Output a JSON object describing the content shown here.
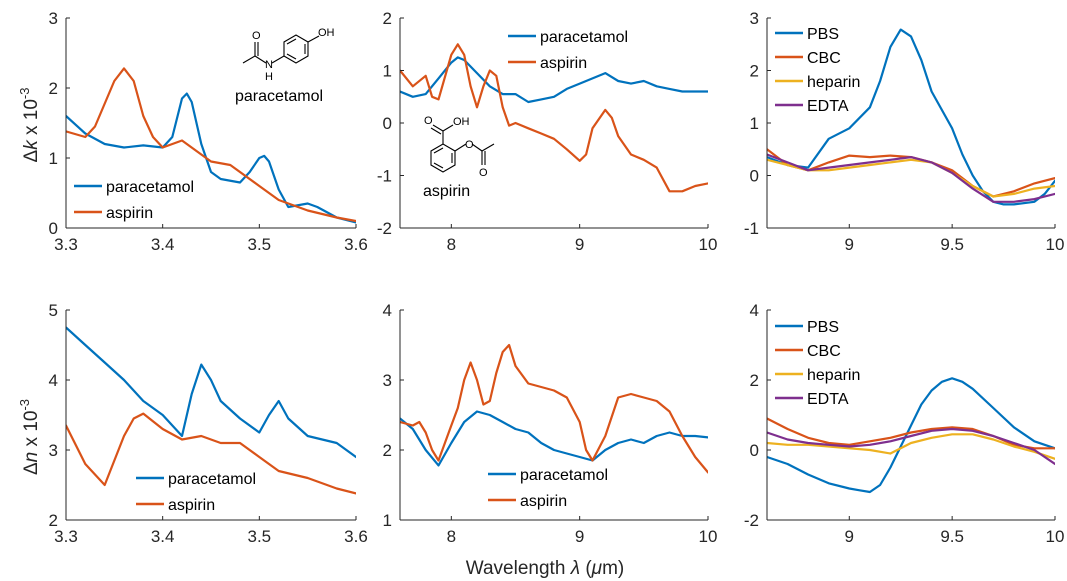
{
  "figure": {
    "y_label_top": "Δk x 10⁻³",
    "y_label_top_parts": {
      "delta": "Δ",
      "symbol": "k",
      "rest": " x 10",
      "exp": "-3"
    },
    "y_label_bottom_parts": {
      "delta": "Δ",
      "symbol": "n",
      "rest": " x 10",
      "exp": "-3"
    },
    "x_label_parts": {
      "text": "Wavelength ",
      "lambda": "λ",
      "unit_open": " (",
      "mu": "μ",
      "unit_close": "m)"
    },
    "molecules": {
      "paracetamol": "paracetamol",
      "aspirin": "aspirin",
      "oh": "OH",
      "o": "O",
      "n": "N",
      "h": "H"
    },
    "colors": {
      "blue": "#0072BD",
      "orange": "#D95319",
      "yellow": "#EDB120",
      "purple": "#7E2F8E"
    }
  },
  "chart_data": [
    {
      "id": "p1",
      "type": "line",
      "xlim": [
        3.3,
        3.6
      ],
      "ylim": [
        0,
        3
      ],
      "xticks": [
        "3.3",
        "3.4",
        "3.5",
        "3.6"
      ],
      "yticks": [
        "0",
        "1",
        "2",
        "3"
      ],
      "legend": "bottom-left",
      "series": [
        {
          "name": "paracetamol",
          "color": "#0072BD",
          "x": [
            3.3,
            3.32,
            3.34,
            3.36,
            3.38,
            3.4,
            3.41,
            3.42,
            3.425,
            3.43,
            3.44,
            3.45,
            3.46,
            3.48,
            3.49,
            3.5,
            3.505,
            3.51,
            3.52,
            3.53,
            3.55,
            3.56,
            3.58,
            3.6
          ],
          "y": [
            1.6,
            1.35,
            1.2,
            1.15,
            1.18,
            1.15,
            1.3,
            1.85,
            1.92,
            1.8,
            1.2,
            0.8,
            0.7,
            0.65,
            0.8,
            1.0,
            1.03,
            0.95,
            0.55,
            0.3,
            0.35,
            0.3,
            0.15,
            0.08
          ]
        },
        {
          "name": "aspirin",
          "color": "#D95319",
          "x": [
            3.3,
            3.32,
            3.33,
            3.35,
            3.36,
            3.37,
            3.38,
            3.39,
            3.4,
            3.42,
            3.44,
            3.45,
            3.47,
            3.5,
            3.52,
            3.55,
            3.58,
            3.6
          ],
          "y": [
            1.38,
            1.3,
            1.45,
            2.1,
            2.28,
            2.1,
            1.6,
            1.3,
            1.15,
            1.25,
            1.05,
            0.95,
            0.9,
            0.6,
            0.4,
            0.25,
            0.15,
            0.1
          ]
        }
      ]
    },
    {
      "id": "p2",
      "type": "line",
      "xlim": [
        7.6,
        10
      ],
      "ylim": [
        -2,
        2
      ],
      "xticks": [
        "8",
        "9",
        "10"
      ],
      "yticks": [
        "-2",
        "-1",
        "0",
        "1",
        "2"
      ],
      "legend": "top-right",
      "series": [
        {
          "name": "paracetamol",
          "color": "#0072BD",
          "x": [
            7.6,
            7.7,
            7.8,
            7.9,
            8.0,
            8.05,
            8.1,
            8.2,
            8.3,
            8.4,
            8.5,
            8.6,
            8.7,
            8.8,
            8.9,
            9.0,
            9.1,
            9.2,
            9.3,
            9.4,
            9.5,
            9.6,
            9.7,
            9.8,
            9.9,
            10.0
          ],
          "y": [
            0.6,
            0.5,
            0.55,
            0.85,
            1.15,
            1.25,
            1.2,
            0.95,
            0.7,
            0.55,
            0.55,
            0.4,
            0.45,
            0.5,
            0.65,
            0.75,
            0.85,
            0.95,
            0.8,
            0.75,
            0.8,
            0.7,
            0.65,
            0.6,
            0.6,
            0.6
          ]
        },
        {
          "name": "aspirin",
          "color": "#D95319",
          "x": [
            7.6,
            7.7,
            7.8,
            7.85,
            7.9,
            8.0,
            8.05,
            8.1,
            8.15,
            8.2,
            8.25,
            8.3,
            8.35,
            8.4,
            8.45,
            8.5,
            8.6,
            8.7,
            8.8,
            8.9,
            9.0,
            9.05,
            9.1,
            9.2,
            9.25,
            9.3,
            9.4,
            9.5,
            9.6,
            9.7,
            9.8,
            9.9,
            10.0
          ],
          "y": [
            1.0,
            0.7,
            0.9,
            0.5,
            0.45,
            1.3,
            1.5,
            1.3,
            0.7,
            0.3,
            0.7,
            1.0,
            0.9,
            0.3,
            -0.05,
            0.0,
            -0.1,
            -0.2,
            -0.3,
            -0.5,
            -0.72,
            -0.6,
            -0.1,
            0.25,
            0.1,
            -0.25,
            -0.6,
            -0.7,
            -0.85,
            -1.3,
            -1.3,
            -1.2,
            -1.15
          ]
        }
      ]
    },
    {
      "id": "p3",
      "type": "line",
      "xlim": [
        8.6,
        10
      ],
      "ylim": [
        -1,
        3
      ],
      "xticks": [
        "9",
        "9.5",
        "10"
      ],
      "yticks": [
        "-1",
        "0",
        "1",
        "2",
        "3"
      ],
      "legend": "top-left",
      "series": [
        {
          "name": "PBS",
          "color": "#0072BD",
          "x": [
            8.6,
            8.7,
            8.8,
            8.9,
            9.0,
            9.1,
            9.15,
            9.2,
            9.25,
            9.3,
            9.35,
            9.4,
            9.5,
            9.55,
            9.6,
            9.65,
            9.7,
            9.75,
            9.8,
            9.9,
            9.95,
            10.0
          ],
          "y": [
            0.35,
            0.2,
            0.15,
            0.7,
            0.9,
            1.3,
            1.8,
            2.45,
            2.78,
            2.65,
            2.2,
            1.6,
            0.9,
            0.4,
            0.0,
            -0.3,
            -0.5,
            -0.55,
            -0.55,
            -0.5,
            -0.35,
            -0.1
          ]
        },
        {
          "name": "CBC",
          "color": "#D95319",
          "x": [
            8.6,
            8.7,
            8.8,
            8.9,
            9.0,
            9.1,
            9.2,
            9.3,
            9.4,
            9.5,
            9.6,
            9.7,
            9.8,
            9.9,
            10.0
          ],
          "y": [
            0.5,
            0.2,
            0.1,
            0.25,
            0.38,
            0.35,
            0.38,
            0.35,
            0.25,
            0.1,
            -0.2,
            -0.4,
            -0.3,
            -0.15,
            -0.05
          ]
        },
        {
          "name": "heparin",
          "color": "#EDB120",
          "x": [
            8.6,
            8.7,
            8.8,
            8.9,
            9.0,
            9.1,
            9.2,
            9.3,
            9.4,
            9.5,
            9.6,
            9.7,
            9.8,
            9.9,
            10.0
          ],
          "y": [
            0.3,
            0.2,
            0.1,
            0.1,
            0.15,
            0.2,
            0.25,
            0.3,
            0.25,
            0.05,
            -0.2,
            -0.4,
            -0.35,
            -0.25,
            -0.2
          ]
        },
        {
          "name": "EDTA",
          "color": "#7E2F8E",
          "x": [
            8.6,
            8.7,
            8.8,
            8.9,
            9.0,
            9.1,
            9.2,
            9.3,
            9.4,
            9.5,
            9.6,
            9.7,
            9.8,
            9.9,
            10.0
          ],
          "y": [
            0.4,
            0.25,
            0.1,
            0.15,
            0.2,
            0.25,
            0.3,
            0.35,
            0.25,
            0.05,
            -0.25,
            -0.5,
            -0.5,
            -0.45,
            -0.35
          ]
        }
      ]
    },
    {
      "id": "p4",
      "type": "line",
      "xlim": [
        3.3,
        3.6
      ],
      "ylim": [
        2,
        5
      ],
      "xticks": [
        "3.3",
        "3.4",
        "3.5",
        "3.6"
      ],
      "yticks": [
        "2",
        "3",
        "4",
        "5"
      ],
      "legend": "bottom-center",
      "series": [
        {
          "name": "paracetamol",
          "color": "#0072BD",
          "x": [
            3.3,
            3.32,
            3.34,
            3.36,
            3.38,
            3.4,
            3.42,
            3.43,
            3.44,
            3.45,
            3.46,
            3.48,
            3.5,
            3.51,
            3.52,
            3.53,
            3.55,
            3.58,
            3.6
          ],
          "y": [
            4.75,
            4.5,
            4.25,
            4.0,
            3.7,
            3.5,
            3.2,
            3.8,
            4.22,
            4.0,
            3.7,
            3.45,
            3.25,
            3.5,
            3.7,
            3.45,
            3.2,
            3.1,
            2.9
          ]
        },
        {
          "name": "aspirin",
          "color": "#D95319",
          "x": [
            3.3,
            3.32,
            3.34,
            3.36,
            3.37,
            3.38,
            3.4,
            3.42,
            3.44,
            3.46,
            3.48,
            3.5,
            3.52,
            3.55,
            3.58,
            3.6
          ],
          "y": [
            3.35,
            2.8,
            2.5,
            3.2,
            3.45,
            3.52,
            3.3,
            3.15,
            3.2,
            3.1,
            3.1,
            2.9,
            2.7,
            2.6,
            2.45,
            2.38
          ]
        }
      ]
    },
    {
      "id": "p5",
      "type": "line",
      "xlim": [
        7.6,
        10
      ],
      "ylim": [
        1,
        4
      ],
      "xticks": [
        "8",
        "9",
        "10"
      ],
      "yticks": [
        "1",
        "2",
        "3",
        "4"
      ],
      "legend": "bottom-center",
      "series": [
        {
          "name": "paracetamol",
          "color": "#0072BD",
          "x": [
            7.6,
            7.7,
            7.8,
            7.9,
            8.0,
            8.1,
            8.2,
            8.3,
            8.4,
            8.5,
            8.6,
            8.7,
            8.8,
            8.9,
            9.0,
            9.1,
            9.2,
            9.3,
            9.4,
            9.5,
            9.6,
            9.7,
            9.8,
            9.9,
            10.0
          ],
          "y": [
            2.45,
            2.3,
            2.0,
            1.78,
            2.1,
            2.4,
            2.55,
            2.5,
            2.4,
            2.3,
            2.25,
            2.1,
            2.0,
            1.95,
            1.9,
            1.85,
            2.0,
            2.1,
            2.15,
            2.1,
            2.2,
            2.25,
            2.2,
            2.2,
            2.18
          ]
        },
        {
          "name": "aspirin",
          "color": "#D95319",
          "x": [
            7.6,
            7.7,
            7.75,
            7.8,
            7.85,
            7.9,
            7.95,
            8.0,
            8.05,
            8.1,
            8.15,
            8.2,
            8.25,
            8.3,
            8.35,
            8.4,
            8.45,
            8.5,
            8.6,
            8.7,
            8.8,
            8.9,
            9.0,
            9.05,
            9.1,
            9.2,
            9.3,
            9.4,
            9.5,
            9.6,
            9.7,
            9.8,
            9.9,
            10.0
          ],
          "y": [
            2.4,
            2.35,
            2.4,
            2.25,
            2.0,
            1.85,
            2.1,
            2.35,
            2.6,
            3.0,
            3.25,
            3.0,
            2.65,
            2.7,
            3.1,
            3.4,
            3.5,
            3.2,
            2.95,
            2.9,
            2.85,
            2.75,
            2.4,
            2.0,
            1.85,
            2.2,
            2.75,
            2.8,
            2.75,
            2.7,
            2.55,
            2.2,
            1.9,
            1.68
          ]
        }
      ]
    },
    {
      "id": "p6",
      "type": "line",
      "xlim": [
        8.6,
        10
      ],
      "ylim": [
        -2,
        4
      ],
      "xticks": [
        "9",
        "9.5",
        "10"
      ],
      "yticks": [
        "-2",
        "0",
        "2",
        "4"
      ],
      "legend": "top-left",
      "series": [
        {
          "name": "PBS",
          "color": "#0072BD",
          "x": [
            8.6,
            8.7,
            8.8,
            8.9,
            9.0,
            9.05,
            9.1,
            9.15,
            9.2,
            9.25,
            9.3,
            9.35,
            9.4,
            9.45,
            9.5,
            9.55,
            9.6,
            9.7,
            9.8,
            9.9,
            10.0
          ],
          "y": [
            -0.2,
            -0.4,
            -0.7,
            -0.95,
            -1.1,
            -1.15,
            -1.2,
            -1.0,
            -0.5,
            0.1,
            0.7,
            1.3,
            1.7,
            1.95,
            2.05,
            1.95,
            1.75,
            1.2,
            0.65,
            0.25,
            0.05
          ]
        },
        {
          "name": "CBC",
          "color": "#D95319",
          "x": [
            8.6,
            8.7,
            8.8,
            8.9,
            9.0,
            9.1,
            9.2,
            9.3,
            9.4,
            9.5,
            9.6,
            9.7,
            9.8,
            9.9,
            10.0
          ],
          "y": [
            0.9,
            0.6,
            0.35,
            0.2,
            0.15,
            0.25,
            0.35,
            0.5,
            0.6,
            0.65,
            0.6,
            0.4,
            0.15,
            0.05,
            0.05
          ]
        },
        {
          "name": "heparin",
          "color": "#EDB120",
          "x": [
            8.6,
            8.7,
            8.8,
            8.9,
            9.0,
            9.1,
            9.2,
            9.3,
            9.4,
            9.5,
            9.6,
            9.7,
            9.8,
            9.9,
            10.0
          ],
          "y": [
            0.2,
            0.15,
            0.15,
            0.1,
            0.05,
            0.0,
            -0.1,
            0.2,
            0.35,
            0.45,
            0.45,
            0.3,
            0.1,
            -0.05,
            -0.25
          ]
        },
        {
          "name": "EDTA",
          "color": "#7E2F8E",
          "x": [
            8.6,
            8.7,
            8.8,
            8.9,
            9.0,
            9.1,
            9.2,
            9.3,
            9.4,
            9.5,
            9.6,
            9.7,
            9.8,
            9.9,
            10.0
          ],
          "y": [
            0.5,
            0.3,
            0.2,
            0.15,
            0.1,
            0.15,
            0.25,
            0.4,
            0.55,
            0.6,
            0.55,
            0.4,
            0.2,
            0.0,
            -0.4
          ]
        }
      ]
    }
  ]
}
